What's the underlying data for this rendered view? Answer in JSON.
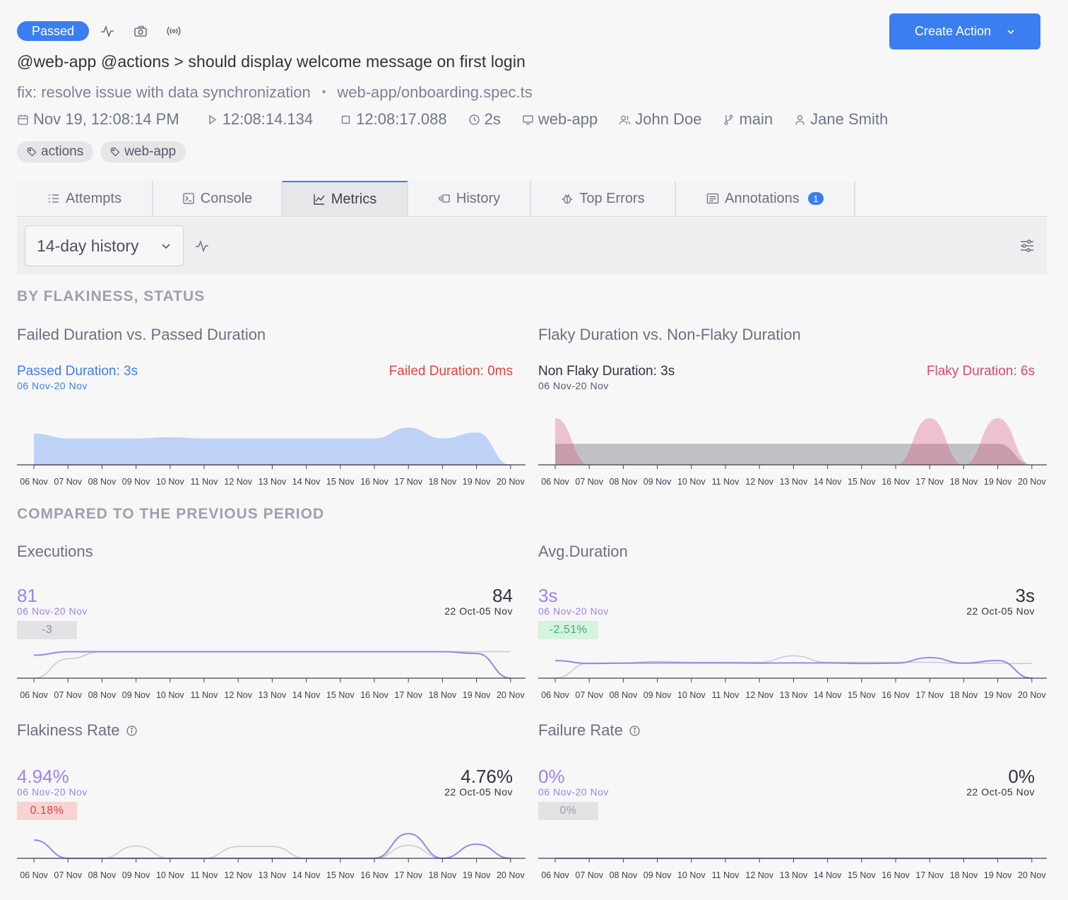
{
  "header": {
    "status": "Passed",
    "icons": [
      "activity-icon",
      "camera-icon",
      "broadcast-icon"
    ],
    "create_button": "Create Action",
    "title": "@web-app @actions > should display welcome message on first login",
    "commit": "fix: resolve issue with data synchronization",
    "separator": "•",
    "spec": "web-app/onboarding.spec.ts",
    "meta": {
      "date": "Nov 19, 12:08:14 PM",
      "start": "12:08:14.134",
      "end": "12:08:17.088",
      "duration": "2s",
      "project": "web-app",
      "author": "John Doe",
      "branch": "main",
      "committer": "Jane Smith"
    },
    "tags": [
      "actions",
      "web-app"
    ]
  },
  "tabs": [
    {
      "label": "Attempts"
    },
    {
      "label": "Console"
    },
    {
      "label": "Metrics",
      "active": true
    },
    {
      "label": "History"
    },
    {
      "label": "Top Errors"
    },
    {
      "label": "Annotations",
      "count": "1"
    }
  ],
  "toolbar": {
    "range": "14-day history"
  },
  "sections": {
    "flakiness_status": "BY FLAKINESS, STATUS",
    "compared": "COMPARED TO THE PREVIOUS PERIOD"
  },
  "panels": {
    "failed_passed": {
      "title": "Failed Duration vs. Passed Duration",
      "left_label": "Passed Duration: 3s",
      "left_range": "06 Nov-20 Nov",
      "right_label": "Failed Duration: 0ms"
    },
    "flaky_nonflaky": {
      "title": "Flaky Duration vs. Non-Flaky Duration",
      "left_label": "Non Flaky Duration: 3s",
      "left_range": "06 Nov-20 Nov",
      "right_label": "Flaky Duration: 6s"
    },
    "executions": {
      "title": "Executions",
      "current": "81",
      "current_range": "06 Nov-20 Nov",
      "previous": "84",
      "previous_range": "22 Oct-05 Nov",
      "delta": "-3"
    },
    "avg_duration": {
      "title": "Avg.Duration",
      "current": "3s",
      "current_range": "06 Nov-20 Nov",
      "previous": "3s",
      "previous_range": "22 Oct-05 Nov",
      "delta": "-2.51%"
    },
    "flakiness_rate": {
      "title": "Flakiness Rate",
      "current": "4.94%",
      "current_range": "06 Nov-20 Nov",
      "previous": "4.76%",
      "previous_range": "22 Oct-05 Nov",
      "delta": "0.18%"
    },
    "failure_rate": {
      "title": "Failure Rate",
      "current": "0%",
      "current_range": "06 Nov-20 Nov",
      "previous": "0%",
      "previous_range": "22 Oct-05 Nov",
      "delta": "0%"
    }
  },
  "colors": {
    "accent": "#3b7ef0",
    "passed": "#3b7ef0",
    "failed": "#e0443e",
    "flaky": "#d94676",
    "current": "#9b84ea",
    "previous": "#c9c9cc",
    "delta_neutral_bg": "#e3e3e6",
    "delta_good_bg": "#d6f2e1",
    "delta_good_text": "#3fae6a",
    "delta_bad_bg": "#f7d3d3",
    "delta_bad_text": "#d9463f"
  },
  "chart_data": [
    {
      "id": "failed_passed",
      "type": "area",
      "x": [
        "06 Nov",
        "07 Nov",
        "08 Nov",
        "09 Nov",
        "10 Nov",
        "11 Nov",
        "12 Nov",
        "13 Nov",
        "14 Nov",
        "15 Nov",
        "16 Nov",
        "17 Nov",
        "18 Nov",
        "19 Nov",
        "20 Nov"
      ],
      "series": [
        {
          "name": "Passed Duration",
          "values": [
            2.6,
            2.2,
            2.2,
            2.2,
            2.3,
            2.2,
            2.2,
            2.2,
            2.2,
            2.2,
            2.2,
            3.1,
            2.2,
            2.7,
            0
          ]
        },
        {
          "name": "Failed Duration",
          "values": [
            0,
            0,
            0,
            0,
            0,
            0,
            0,
            0,
            0,
            0,
            0,
            0,
            0,
            0,
            0
          ]
        }
      ],
      "ylim": [
        0,
        4
      ]
    },
    {
      "id": "flaky_nonflaky",
      "type": "area",
      "x": [
        "06 Nov",
        "07 Nov",
        "08 Nov",
        "09 Nov",
        "10 Nov",
        "11 Nov",
        "12 Nov",
        "13 Nov",
        "14 Nov",
        "15 Nov",
        "16 Nov",
        "17 Nov",
        "18 Nov",
        "19 Nov",
        "20 Nov"
      ],
      "series": [
        {
          "name": "Non Flaky Duration",
          "values": [
            2.7,
            2.7,
            2.7,
            2.7,
            2.7,
            2.7,
            2.7,
            2.7,
            2.7,
            2.7,
            2.7,
            2.7,
            2.7,
            2.7,
            0
          ]
        },
        {
          "name": "Flaky Duration",
          "values": [
            6,
            0,
            0,
            0,
            0,
            0,
            0,
            0,
            0,
            0,
            0,
            6,
            0,
            6,
            0
          ]
        }
      ],
      "ylim": [
        0,
        6
      ]
    },
    {
      "id": "executions",
      "type": "line",
      "x": [
        "06 Nov",
        "07 Nov",
        "08 Nov",
        "09 Nov",
        "10 Nov",
        "11 Nov",
        "12 Nov",
        "13 Nov",
        "14 Nov",
        "15 Nov",
        "16 Nov",
        "17 Nov",
        "18 Nov",
        "19 Nov",
        "20 Nov"
      ],
      "series": [
        {
          "values": [
            5.2,
            6,
            6,
            6,
            6,
            6,
            6,
            6,
            6,
            6,
            6,
            6,
            6,
            5.6,
            0
          ]
        },
        {
          "values": [
            0,
            4.4,
            6,
            6,
            6,
            6,
            6,
            6,
            6,
            6,
            6,
            6,
            6,
            6,
            6
          ]
        }
      ],
      "ylim": [
        0,
        8
      ]
    },
    {
      "id": "avg_duration",
      "type": "line",
      "x": [
        "06 Nov",
        "07 Nov",
        "08 Nov",
        "09 Nov",
        "10 Nov",
        "11 Nov",
        "12 Nov",
        "13 Nov",
        "14 Nov",
        "15 Nov",
        "16 Nov",
        "17 Nov",
        "18 Nov",
        "19 Nov",
        "20 Nov"
      ],
      "series": [
        {
          "values": [
            3.0,
            2.5,
            2.55,
            2.6,
            2.6,
            2.6,
            2.55,
            2.6,
            2.6,
            2.5,
            2.55,
            3.5,
            2.55,
            3.0,
            0
          ]
        },
        {
          "values": [
            0,
            2.6,
            2.6,
            2.85,
            2.7,
            2.7,
            2.7,
            3.8,
            2.7,
            2.7,
            2.7,
            2.7,
            2.5,
            2.5,
            2.5
          ]
        }
      ],
      "ylim": [
        0,
        6
      ]
    },
    {
      "id": "flakiness_rate",
      "type": "line",
      "x": [
        "06 Nov",
        "07 Nov",
        "08 Nov",
        "09 Nov",
        "10 Nov",
        "11 Nov",
        "12 Nov",
        "13 Nov",
        "14 Nov",
        "15 Nov",
        "16 Nov",
        "17 Nov",
        "18 Nov",
        "19 Nov",
        "20 Nov"
      ],
      "series": [
        {
          "values": [
            15.5,
            0,
            0,
            0,
            0,
            0,
            0,
            0,
            0,
            0,
            0,
            21,
            0,
            12,
            0
          ]
        },
        {
          "values": [
            0,
            0,
            0,
            10.5,
            0,
            0,
            10,
            10,
            0,
            0,
            0,
            11,
            0,
            0,
            0
          ]
        }
      ],
      "ylim": [
        0,
        30
      ]
    },
    {
      "id": "failure_rate",
      "type": "line",
      "x": [
        "06 Nov",
        "07 Nov",
        "08 Nov",
        "09 Nov",
        "10 Nov",
        "11 Nov",
        "12 Nov",
        "13 Nov",
        "14 Nov",
        "15 Nov",
        "16 Nov",
        "17 Nov",
        "18 Nov",
        "19 Nov",
        "20 Nov"
      ],
      "series": [
        {
          "values": [
            0,
            0,
            0,
            0,
            0,
            0,
            0,
            0,
            0,
            0,
            0,
            0,
            0,
            0,
            0
          ]
        },
        {
          "values": [
            0,
            0,
            0,
            0,
            0,
            0,
            0,
            0,
            0,
            0,
            0,
            0,
            0,
            0,
            0
          ]
        }
      ],
      "ylim": [
        0,
        10
      ]
    }
  ]
}
